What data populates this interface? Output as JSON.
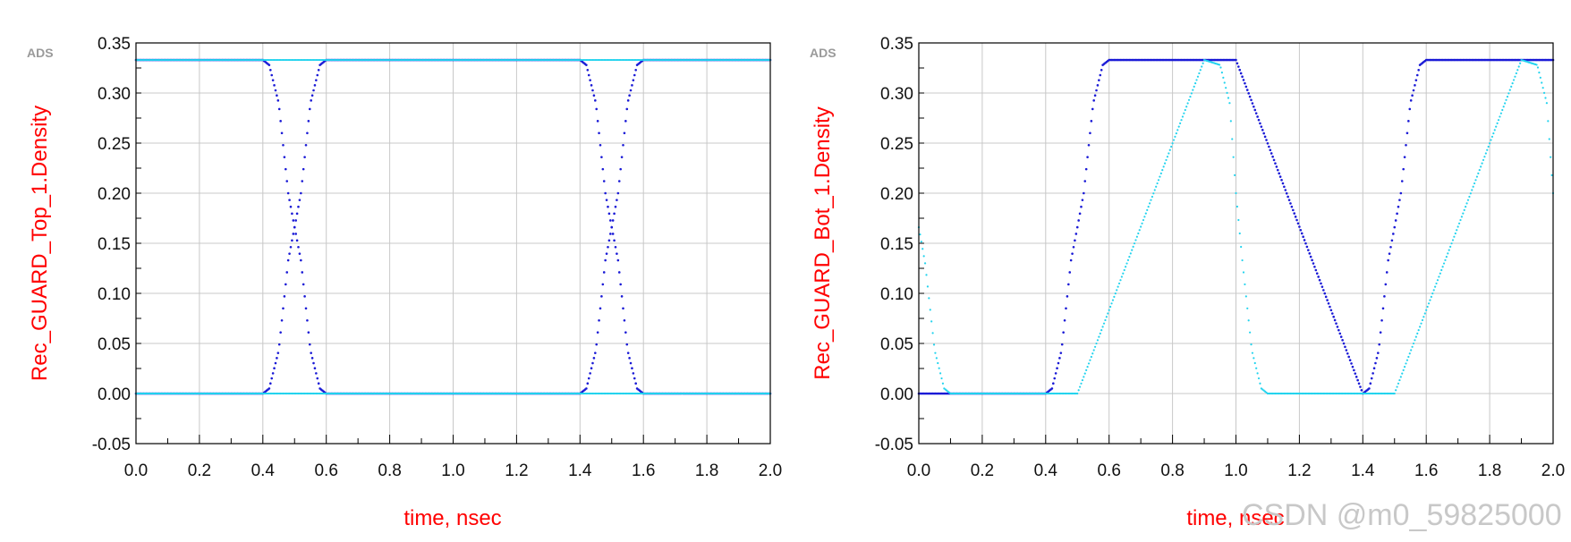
{
  "watermark": "CSDN @m0_59825000",
  "colors": {
    "series_dark": "#1a1ad6",
    "series_light": "#22d3ee",
    "label": "#ff0000",
    "grid": "#c8c8c8"
  },
  "chart_data": [
    {
      "type": "scatter",
      "brand": "ADS",
      "xlabel": "time, nsec",
      "ylabel": "Rec_GUARD_Top_1.Density",
      "xlim": [
        0.0,
        2.0
      ],
      "ylim": [
        -0.05,
        0.35
      ],
      "x_ticks": [
        "0.0",
        "0.2",
        "0.4",
        "0.6",
        "0.8",
        "1.0",
        "1.2",
        "1.4",
        "1.6",
        "1.8",
        "2.0"
      ],
      "y_ticks": [
        "-0.05",
        "0.00",
        "0.05",
        "0.10",
        "0.15",
        "0.20",
        "0.25",
        "0.30",
        "0.35"
      ],
      "grid": true,
      "series": [
        {
          "color": "#1a1ad6",
          "pattern": "eye_both",
          "x": [
            0.0,
            0.4,
            0.42,
            0.45,
            0.48,
            0.5,
            0.52,
            0.55,
            0.58,
            0.6,
            1.0,
            1.4,
            1.42,
            1.45,
            1.48,
            1.5,
            1.52,
            1.55,
            1.58,
            1.6,
            2.0
          ],
          "y_high": [
            0.333,
            0.333,
            0.328,
            0.29,
            0.2,
            0.166,
            0.2,
            0.29,
            0.328,
            0.333,
            0.333,
            0.333,
            0.328,
            0.29,
            0.2,
            0.166,
            0.2,
            0.29,
            0.328,
            0.333,
            0.333
          ],
          "y_low": [
            0.0,
            0.0,
            0.005,
            0.043,
            0.133,
            0.166,
            0.133,
            0.043,
            0.005,
            0.0,
            0.0,
            0.0,
            0.005,
            0.043,
            0.133,
            0.166,
            0.133,
            0.043,
            0.005,
            0.0,
            0.0
          ]
        },
        {
          "color": "#22d3ee",
          "pattern": "flat_lines",
          "x": [
            0.0,
            2.0
          ],
          "y_high": [
            0.333,
            0.333
          ],
          "y_low": [
            0.0,
            0.0
          ]
        }
      ]
    },
    {
      "type": "scatter",
      "brand": "ADS",
      "xlabel": "time, nsec",
      "ylabel": "Rec_GUARD_Bot_1.Density",
      "xlim": [
        0.0,
        2.0
      ],
      "ylim": [
        -0.05,
        0.35
      ],
      "x_ticks": [
        "0.0",
        "0.2",
        "0.4",
        "0.6",
        "0.8",
        "1.0",
        "1.2",
        "1.4",
        "1.6",
        "1.8",
        "2.0"
      ],
      "y_ticks": [
        "-0.05",
        "0.00",
        "0.05",
        "0.10",
        "0.15",
        "0.20",
        "0.25",
        "0.30",
        "0.35"
      ],
      "grid": true,
      "series": [
        {
          "color": "#1a1ad6",
          "pattern": "rise",
          "x": [
            0.0,
            0.4,
            0.42,
            0.45,
            0.48,
            0.5,
            0.52,
            0.55,
            0.58,
            0.6,
            1.0,
            1.4,
            1.42,
            1.45,
            1.48,
            1.5,
            1.52,
            1.55,
            1.58,
            1.6,
            2.0
          ],
          "y": [
            0.0,
            0.0,
            0.005,
            0.043,
            0.133,
            0.166,
            0.2,
            0.29,
            0.328,
            0.333,
            0.333,
            0.0,
            0.005,
            0.043,
            0.133,
            0.166,
            0.2,
            0.29,
            0.328,
            0.333,
            0.333
          ]
        },
        {
          "color": "#22d3ee",
          "pattern": "fall",
          "x": [
            0.0,
            0.02,
            0.05,
            0.08,
            0.1,
            0.5,
            0.9,
            0.95,
            0.98,
            1.0,
            1.02,
            1.05,
            1.08,
            1.1,
            1.5,
            1.9,
            1.95,
            1.98,
            2.0
          ],
          "y": [
            0.166,
            0.13,
            0.043,
            0.005,
            0.0,
            0.0,
            0.333,
            0.328,
            0.29,
            0.2,
            0.133,
            0.043,
            0.005,
            0.0,
            0.0,
            0.333,
            0.328,
            0.29,
            0.2
          ]
        }
      ]
    }
  ]
}
